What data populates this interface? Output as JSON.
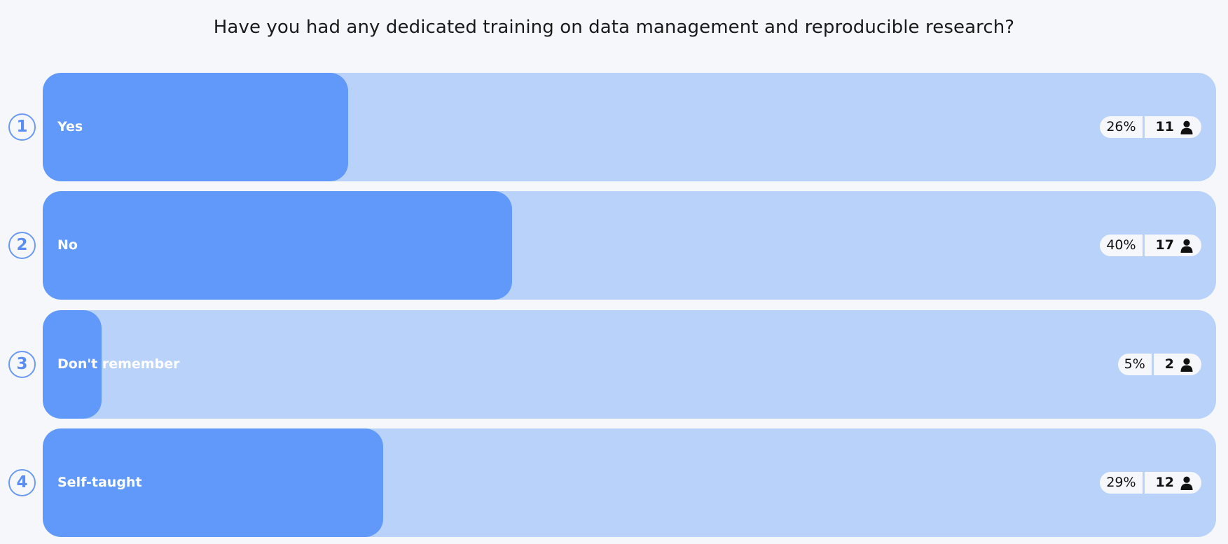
{
  "question": "Have you had any dedicated training on data management and reproducible research?",
  "colors": {
    "track": "#b9d2f9",
    "fill": "#6199fb",
    "accent": "#5a8ef5",
    "background": "#f6f7fb"
  },
  "options": [
    {
      "number": "1",
      "label": "Yes",
      "percent": "26%",
      "count": "11",
      "fraction": 0.26,
      "icon": "user-icon"
    },
    {
      "number": "2",
      "label": "No",
      "percent": "40%",
      "count": "17",
      "fraction": 0.4,
      "icon": "user-icon"
    },
    {
      "number": "3",
      "label": "Don't remember",
      "percent": "5%",
      "count": "2",
      "fraction": 0.05,
      "icon": "user-icon"
    },
    {
      "number": "4",
      "label": "Self-taught",
      "percent": "29%",
      "count": "12",
      "fraction": 0.29,
      "icon": "user-icon"
    }
  ]
}
